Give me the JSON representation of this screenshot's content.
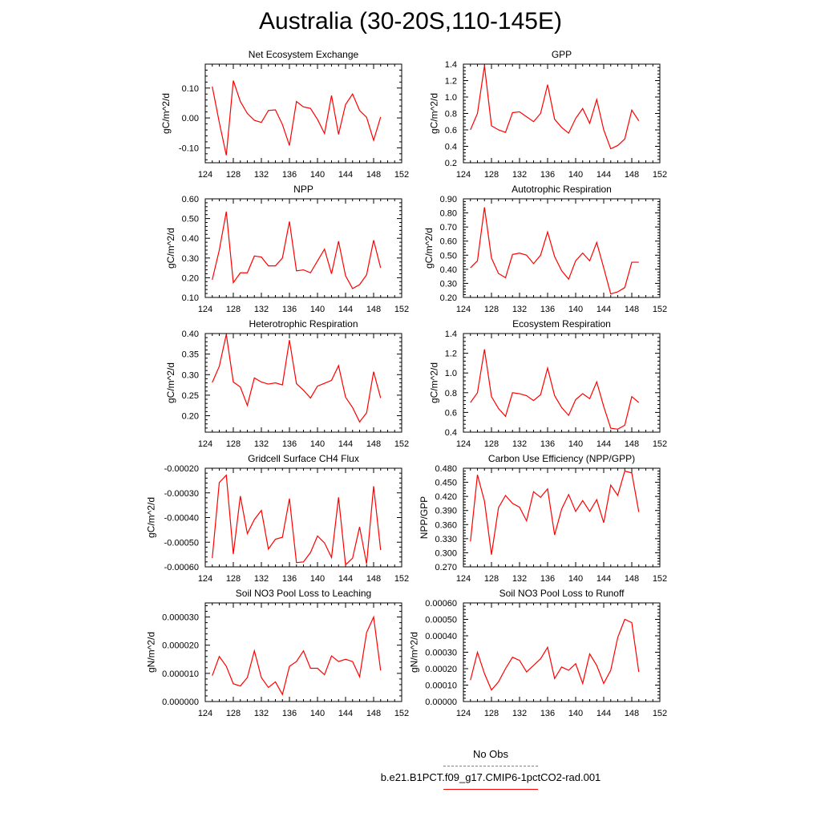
{
  "page": {
    "title": "Australia (30-20S,110-145E)"
  },
  "legend": {
    "entries": [
      {
        "label": "No Obs",
        "color": "#7777cc",
        "style": "dashed"
      },
      {
        "label": "b.e21.B1PCT.f09_g17.CMIP6-1pctCO2-rad.001",
        "color": "#ff0000",
        "style": "solid"
      }
    ]
  },
  "chart_data": [
    {
      "type": "line",
      "title": "Net Ecosystem Exchange",
      "ylabel": "gC/m^2/d",
      "xlim": [
        124,
        152
      ],
      "ylim": [
        -0.15,
        0.18
      ],
      "x_ticks": [
        124,
        128,
        132,
        136,
        140,
        144,
        148,
        152
      ],
      "y_ticks": [
        -0.1,
        0.0,
        0.1
      ],
      "y_tick_labels": [
        "-0.10",
        "0.00",
        "0.10"
      ],
      "series": [
        {
          "color": "#ff0000",
          "x": [
            125,
            126,
            127,
            128,
            129,
            130,
            131,
            132,
            133,
            134,
            135,
            136,
            137,
            138,
            139,
            140,
            141,
            142,
            143,
            144,
            145,
            146,
            147,
            148,
            149
          ],
          "y": [
            0.105,
            -0.015,
            -0.125,
            0.125,
            0.055,
            0.015,
            -0.008,
            -0.015,
            0.025,
            0.027,
            -0.022,
            -0.092,
            0.055,
            0.037,
            0.032,
            -0.005,
            -0.052,
            0.075,
            -0.055,
            0.045,
            0.08,
            0.025,
            0.002,
            -0.075,
            0.003
          ]
        }
      ]
    },
    {
      "type": "line",
      "title": "GPP",
      "ylabel": "gC/m^2/d",
      "xlim": [
        124,
        152
      ],
      "ylim": [
        0.2,
        1.4
      ],
      "x_ticks": [
        124,
        128,
        132,
        136,
        140,
        144,
        148,
        152
      ],
      "y_ticks": [
        0.2,
        0.4,
        0.6,
        0.8,
        1.0,
        1.2,
        1.4
      ],
      "y_tick_labels": [
        "0.2",
        "0.4",
        "0.6",
        "0.8",
        "1.0",
        "1.2",
        "1.4"
      ],
      "series": [
        {
          "color": "#ff0000",
          "x": [
            125,
            126,
            127,
            128,
            129,
            130,
            131,
            132,
            133,
            134,
            135,
            136,
            137,
            138,
            139,
            140,
            141,
            142,
            143,
            144,
            145,
            146,
            147,
            148,
            149
          ],
          "y": [
            0.6,
            0.8,
            1.38,
            0.65,
            0.6,
            0.57,
            0.81,
            0.82,
            0.76,
            0.7,
            0.8,
            1.15,
            0.73,
            0.63,
            0.56,
            0.74,
            0.86,
            0.68,
            0.97,
            0.6,
            0.37,
            0.41,
            0.49,
            0.84,
            0.71
          ]
        }
      ]
    },
    {
      "type": "line",
      "title": "NPP",
      "ylabel": "gC/m^2/d",
      "xlim": [
        124,
        152
      ],
      "ylim": [
        0.1,
        0.6
      ],
      "x_ticks": [
        124,
        128,
        132,
        136,
        140,
        144,
        148,
        152
      ],
      "y_ticks": [
        0.1,
        0.2,
        0.3,
        0.4,
        0.5,
        0.6
      ],
      "y_tick_labels": [
        "0.10",
        "0.20",
        "0.30",
        "0.40",
        "0.50",
        "0.60"
      ],
      "series": [
        {
          "color": "#ff0000",
          "x": [
            125,
            126,
            127,
            128,
            129,
            130,
            131,
            132,
            133,
            134,
            135,
            136,
            137,
            138,
            139,
            140,
            141,
            142,
            143,
            144,
            145,
            146,
            147,
            148,
            149
          ],
          "y": [
            0.19,
            0.34,
            0.535,
            0.175,
            0.225,
            0.225,
            0.31,
            0.305,
            0.26,
            0.26,
            0.3,
            0.485,
            0.235,
            0.24,
            0.225,
            0.285,
            0.345,
            0.22,
            0.385,
            0.21,
            0.145,
            0.165,
            0.215,
            0.39,
            0.25
          ]
        }
      ]
    },
    {
      "type": "line",
      "title": "Autotrophic Respiration",
      "ylabel": "gC/m^2/d",
      "xlim": [
        124,
        152
      ],
      "ylim": [
        0.2,
        0.9
      ],
      "x_ticks": [
        124,
        128,
        132,
        136,
        140,
        144,
        148,
        152
      ],
      "y_ticks": [
        0.2,
        0.3,
        0.4,
        0.5,
        0.6,
        0.7,
        0.8,
        0.9
      ],
      "y_tick_labels": [
        "0.20",
        "0.30",
        "0.40",
        "0.50",
        "0.60",
        "0.70",
        "0.80",
        "0.90"
      ],
      "series": [
        {
          "color": "#ff0000",
          "x": [
            125,
            126,
            127,
            128,
            129,
            130,
            131,
            132,
            133,
            134,
            135,
            136,
            137,
            138,
            139,
            140,
            141,
            142,
            143,
            144,
            145,
            146,
            147,
            148,
            149
          ],
          "y": [
            0.41,
            0.46,
            0.84,
            0.48,
            0.37,
            0.34,
            0.505,
            0.515,
            0.5,
            0.44,
            0.5,
            0.665,
            0.49,
            0.39,
            0.33,
            0.46,
            0.515,
            0.46,
            0.59,
            0.41,
            0.225,
            0.24,
            0.27,
            0.45,
            0.45
          ]
        }
      ]
    },
    {
      "type": "line",
      "title": "Heterotrophic Respiration",
      "ylabel": "gC/m^2/d",
      "xlim": [
        124,
        152
      ],
      "ylim": [
        0.16,
        0.4
      ],
      "x_ticks": [
        124,
        128,
        132,
        136,
        140,
        144,
        148,
        152
      ],
      "y_ticks": [
        0.2,
        0.25,
        0.3,
        0.35,
        0.4
      ],
      "y_tick_labels": [
        "0.20",
        "0.25",
        "0.30",
        "0.35",
        "0.40"
      ],
      "series": [
        {
          "color": "#ff0000",
          "x": [
            125,
            126,
            127,
            128,
            129,
            130,
            131,
            132,
            133,
            134,
            135,
            136,
            137,
            138,
            139,
            140,
            141,
            142,
            143,
            144,
            145,
            146,
            147,
            148,
            149
          ],
          "y": [
            0.281,
            0.32,
            0.398,
            0.282,
            0.27,
            0.225,
            0.292,
            0.282,
            0.277,
            0.28,
            0.275,
            0.384,
            0.278,
            0.262,
            0.243,
            0.272,
            0.279,
            0.286,
            0.322,
            0.245,
            0.22,
            0.185,
            0.207,
            0.307,
            0.243
          ]
        }
      ]
    },
    {
      "type": "line",
      "title": "Ecosystem Respiration",
      "ylabel": "gC/m^2/d",
      "xlim": [
        124,
        152
      ],
      "ylim": [
        0.4,
        1.4
      ],
      "x_ticks": [
        124,
        128,
        132,
        136,
        140,
        144,
        148,
        152
      ],
      "y_ticks": [
        0.4,
        0.6,
        0.8,
        1.0,
        1.2,
        1.4
      ],
      "y_tick_labels": [
        "0.4",
        "0.6",
        "0.8",
        "1.0",
        "1.2",
        "1.4"
      ],
      "series": [
        {
          "color": "#ff0000",
          "x": [
            125,
            126,
            127,
            128,
            129,
            130,
            131,
            132,
            133,
            134,
            135,
            136,
            137,
            138,
            139,
            140,
            141,
            142,
            143,
            144,
            145,
            146,
            147,
            148,
            149
          ],
          "y": [
            0.7,
            0.8,
            1.24,
            0.76,
            0.64,
            0.56,
            0.8,
            0.79,
            0.77,
            0.72,
            0.78,
            1.05,
            0.77,
            0.65,
            0.57,
            0.73,
            0.79,
            0.74,
            0.91,
            0.66,
            0.44,
            0.43,
            0.47,
            0.76,
            0.7
          ]
        }
      ]
    },
    {
      "type": "line",
      "title": "Gridcell Surface CH4 Flux",
      "ylabel": "gC/m^2/d",
      "xlim": [
        124,
        152
      ],
      "ylim": [
        -0.0006,
        -0.0002
      ],
      "x_ticks": [
        124,
        128,
        132,
        136,
        140,
        144,
        148,
        152
      ],
      "y_ticks": [
        -0.0006,
        -0.0005,
        -0.0004,
        -0.0003,
        -0.0002
      ],
      "y_tick_labels": [
        "-0.00060",
        "-0.00050",
        "-0.00040",
        "-0.00030",
        "-0.00020"
      ],
      "series": [
        {
          "color": "#ff0000",
          "x": [
            125,
            126,
            127,
            128,
            129,
            130,
            131,
            132,
            133,
            134,
            135,
            136,
            137,
            138,
            139,
            140,
            141,
            142,
            143,
            144,
            145,
            146,
            147,
            148,
            149
          ],
          "y": [
            -0.000565,
            -0.000258,
            -0.000228,
            -0.000548,
            -0.000313,
            -0.000465,
            -0.000408,
            -0.000371,
            -0.000528,
            -0.000488,
            -0.00048,
            -0.000323,
            -0.000583,
            -0.00058,
            -0.000542,
            -0.000475,
            -0.000503,
            -0.000562,
            -0.000318,
            -0.000592,
            -0.000565,
            -0.000438,
            -0.000588,
            -0.000273,
            -0.000532
          ]
        }
      ]
    },
    {
      "type": "line",
      "title": "Carbon Use Efficiency (NPP/GPP)",
      "ylabel": "NPP/GPP",
      "xlim": [
        124,
        152
      ],
      "ylim": [
        0.27,
        0.48
      ],
      "x_ticks": [
        124,
        128,
        132,
        136,
        140,
        144,
        148,
        152
      ],
      "y_ticks": [
        0.27,
        0.3,
        0.33,
        0.36,
        0.39,
        0.42,
        0.45,
        0.48
      ],
      "y_tick_labels": [
        "0.270",
        "0.300",
        "0.330",
        "0.360",
        "0.390",
        "0.420",
        "0.450",
        "0.480"
      ],
      "series": [
        {
          "color": "#ff0000",
          "x": [
            125,
            126,
            127,
            128,
            129,
            130,
            131,
            132,
            133,
            134,
            135,
            136,
            137,
            138,
            139,
            140,
            141,
            142,
            143,
            144,
            145,
            146,
            147,
            148,
            149
          ],
          "y": [
            0.324,
            0.466,
            0.41,
            0.296,
            0.396,
            0.422,
            0.405,
            0.397,
            0.368,
            0.43,
            0.418,
            0.436,
            0.338,
            0.393,
            0.424,
            0.388,
            0.411,
            0.388,
            0.413,
            0.364,
            0.444,
            0.422,
            0.474,
            0.47,
            0.387
          ]
        }
      ]
    },
    {
      "type": "line",
      "title": "Soil NO3 Pool Loss to Leaching",
      "ylabel": "gN/m^2/d",
      "xlim": [
        124,
        152
      ],
      "ylim": [
        0,
        3.5e-05
      ],
      "x_ticks": [
        124,
        128,
        132,
        136,
        140,
        144,
        148,
        152
      ],
      "y_ticks": [
        0,
        1e-05,
        2e-05,
        3e-05
      ],
      "y_tick_labels": [
        "0.000000",
        "0.000010",
        "0.000020",
        "0.000030"
      ],
      "series": [
        {
          "color": "#ff0000",
          "x": [
            125,
            126,
            127,
            128,
            129,
            130,
            131,
            132,
            133,
            134,
            135,
            136,
            137,
            138,
            139,
            140,
            141,
            142,
            143,
            144,
            145,
            146,
            147,
            148,
            149
          ],
          "y": [
            9.2e-06,
            1.6e-05,
            1.25e-05,
            6.3e-06,
            5.5e-06,
            8.5e-06,
            1.8e-05,
            8.5e-06,
            5e-06,
            7e-06,
            2.5e-06,
            1.25e-05,
            1.42e-05,
            1.8e-05,
            1.18e-05,
            1.18e-05,
            9.5e-06,
            1.62e-05,
            1.42e-05,
            1.5e-05,
            1.42e-05,
            8.8e-06,
            2.45e-05,
            3e-05,
            1.1e-05
          ]
        }
      ]
    },
    {
      "type": "line",
      "title": "Soil NO3 Pool Loss to Runoff",
      "ylabel": "gN/m^2/d",
      "xlim": [
        124,
        152
      ],
      "ylim": [
        0,
        0.0006
      ],
      "x_ticks": [
        124,
        128,
        132,
        136,
        140,
        144,
        148,
        152
      ],
      "y_ticks": [
        0,
        0.0001,
        0.0002,
        0.0003,
        0.0004,
        0.0005,
        0.0006
      ],
      "y_tick_labels": [
        "0.00000",
        "0.00010",
        "0.00020",
        "0.00030",
        "0.00040",
        "0.00050",
        "0.00060"
      ],
      "series": [
        {
          "color": "#ff0000",
          "x": [
            125,
            126,
            127,
            128,
            129,
            130,
            131,
            132,
            133,
            134,
            135,
            136,
            137,
            138,
            139,
            140,
            141,
            142,
            143,
            144,
            145,
            146,
            147,
            148,
            149
          ],
          "y": [
            0.00013,
            0.0003,
            0.00017,
            7e-05,
            0.00012,
            0.0002,
            0.00027,
            0.00025,
            0.00018,
            0.00022,
            0.00026,
            0.00033,
            0.00014,
            0.00021,
            0.00019,
            0.00023,
            0.00011,
            0.00029,
            0.00022,
            0.00011,
            0.00019,
            0.00039,
            0.0005,
            0.00048,
            0.00018
          ]
        }
      ]
    }
  ]
}
